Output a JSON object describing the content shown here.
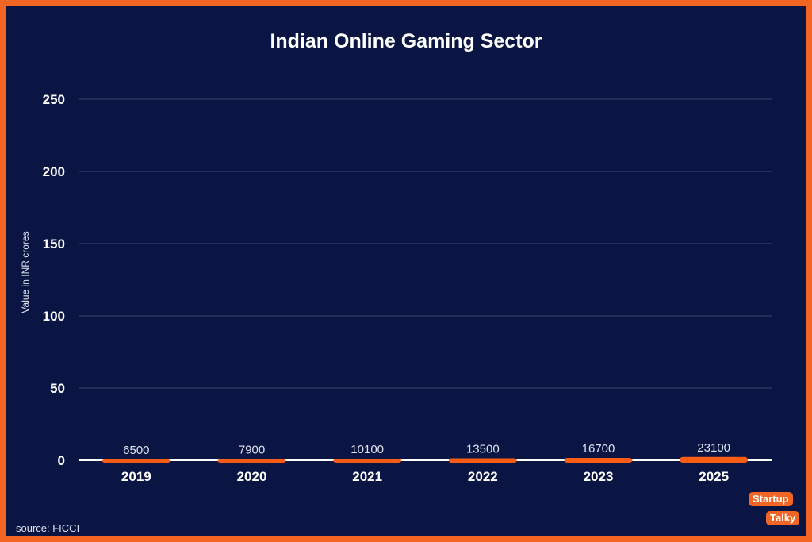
{
  "chart_data": {
    "type": "bar",
    "title": "Indian Online Gaming Sector",
    "xlabel": "",
    "ylabel": "Value in INR crores",
    "categories": [
      "2019",
      "2020",
      "2021",
      "2022",
      "2023",
      "2025"
    ],
    "values": [
      6500,
      7900,
      10100,
      13500,
      16700,
      23100
    ],
    "data_labels": [
      "6500",
      "7900",
      "10100",
      "13500",
      "16700",
      "23100"
    ],
    "y_ticks": [
      "0",
      "50",
      "100",
      "150",
      "200",
      "250"
    ],
    "ylim": [
      0,
      25000
    ],
    "grid": true,
    "legend": "none",
    "colors": {
      "bar": "#f95d15",
      "background": "#0b1543",
      "frame": "#f26522",
      "grid": "#3a4570",
      "text": "#ffffff"
    }
  },
  "footer": {
    "source": "source: FICCI",
    "logo_line1": "Startup",
    "logo_line2": "Talky"
  }
}
